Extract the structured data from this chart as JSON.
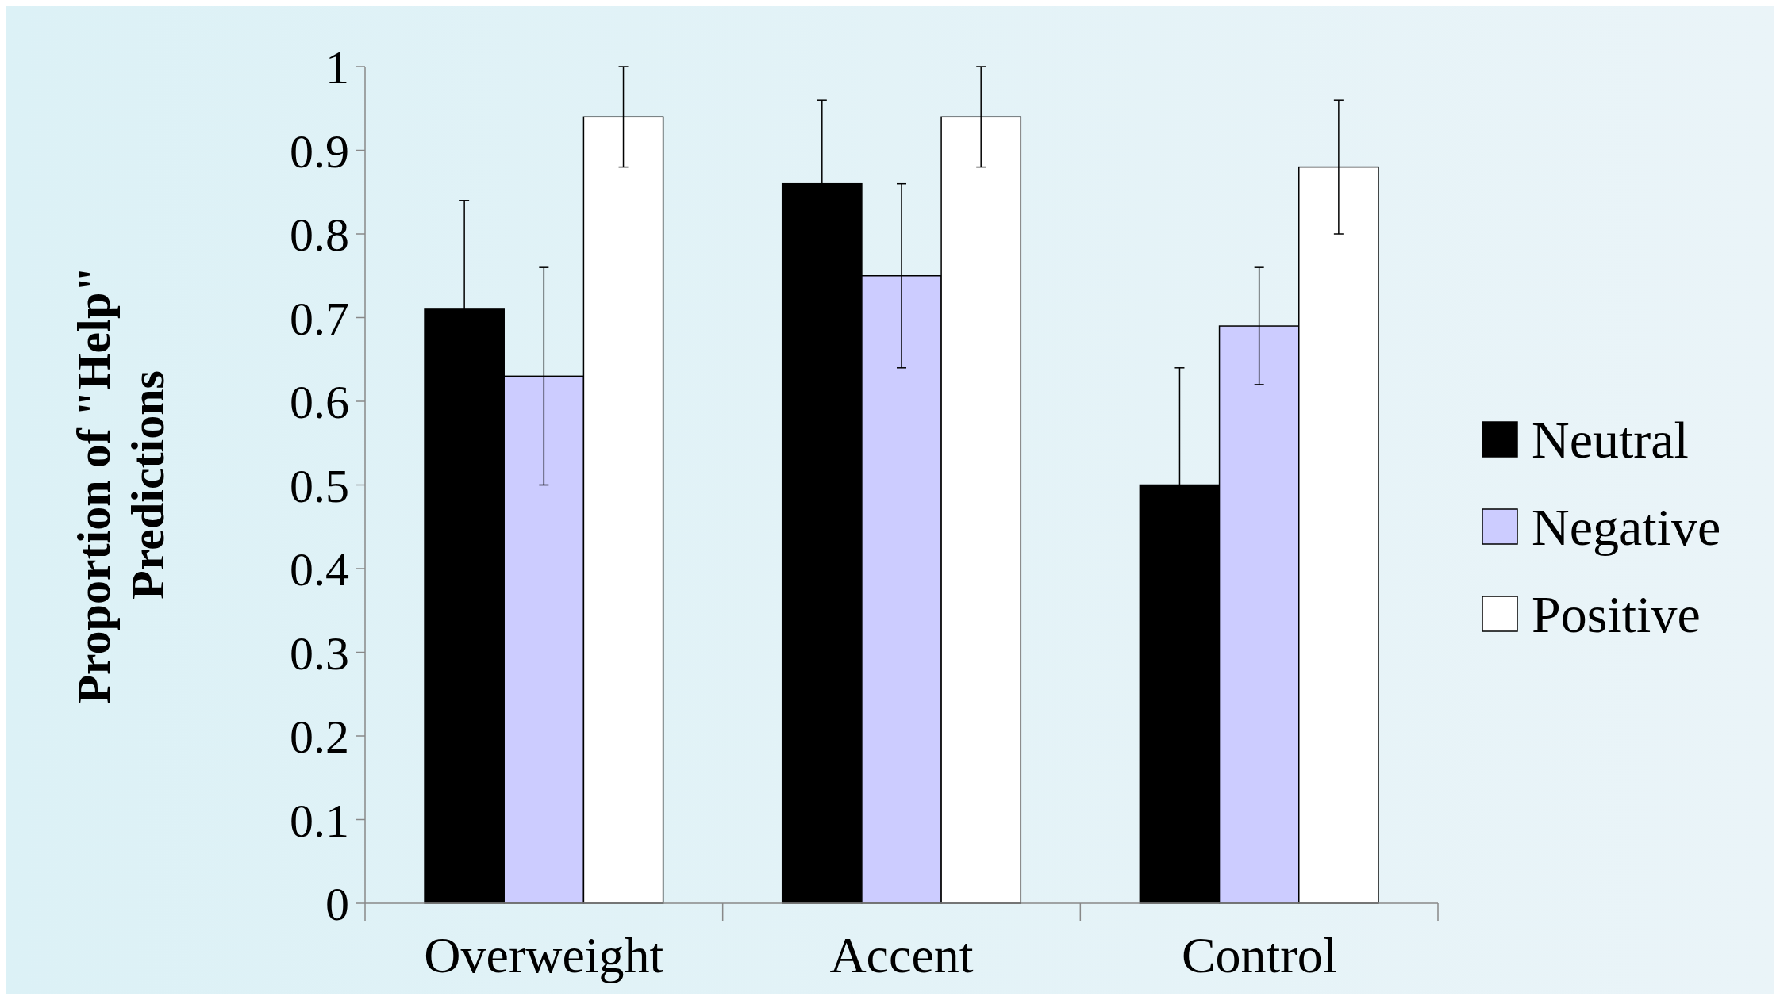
{
  "chart_data": {
    "type": "bar",
    "ylabel": "Proportion of \"Help\" Predictions",
    "categories": [
      "Overweight",
      "Accent",
      "Control"
    ],
    "series": [
      {
        "name": "Neutral",
        "color": "#000000",
        "values": [
          0.71,
          0.86,
          0.5
        ],
        "errors": [
          0.13,
          0.1,
          0.14
        ]
      },
      {
        "name": "Negative",
        "color": "#ccccff",
        "values": [
          0.63,
          0.75,
          0.69
        ],
        "errors": [
          0.13,
          0.11,
          0.07
        ]
      },
      {
        "name": "Positive",
        "color": "#ffffff",
        "values": [
          0.94,
          0.94,
          0.88
        ],
        "errors": [
          0.06,
          0.06,
          0.08
        ]
      }
    ],
    "ylim": [
      0,
      1
    ],
    "yticks": [
      0,
      0.1,
      0.2,
      0.3,
      0.4,
      0.5,
      0.6,
      0.7,
      0.8,
      0.9,
      1
    ],
    "grid": false,
    "legend": "right"
  }
}
